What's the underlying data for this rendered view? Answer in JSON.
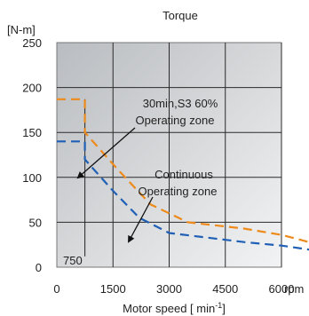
{
  "chart_data": {
    "type": "line",
    "title": "Torque",
    "ylabel_unit": "[N-m]",
    "xlabel_main": "Motor speed [ min",
    "xlabel_sup": "-1",
    "xlabel_end": "]",
    "x_unit": "rpm",
    "xlim": [
      0,
      7000
    ],
    "ylim": [
      0,
      250
    ],
    "x_ticks": [
      0,
      1500,
      3000,
      4500,
      6000
    ],
    "y_ticks": [
      0,
      50,
      100,
      150,
      200,
      250
    ],
    "grid": true,
    "series": [
      {
        "key": "s3",
        "color": "#ee8a1a",
        "dash": "dashed",
        "x": [
          0,
          750,
          750,
          1600,
          2500,
          3500,
          5000,
          6000,
          7000
        ],
        "y": [
          187,
          187,
          150,
          110,
          70,
          50,
          43,
          36,
          25
        ]
      },
      {
        "key": "continuous",
        "color": "#1f5fb5",
        "dash": "dashed",
        "x": [
          0,
          750,
          750,
          1500,
          2200,
          3000,
          4000,
          5000,
          6000,
          7000
        ],
        "y": [
          140,
          140,
          120,
          85,
          55,
          38,
          33,
          28,
          24,
          18
        ]
      }
    ],
    "annotations": {
      "s3_line1": "30min,S3 60%",
      "s3_line2": "Operating zone",
      "cont_line1": "Continuous",
      "cont_line2": "Operating zone",
      "corner_label": "750"
    }
  }
}
